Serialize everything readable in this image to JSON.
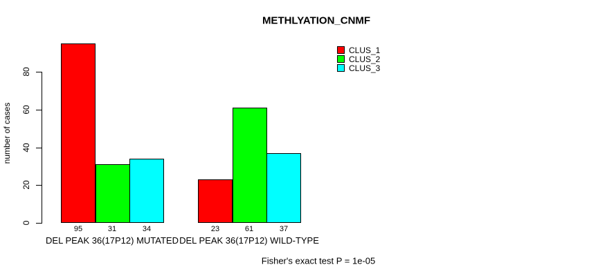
{
  "chart_data": {
    "type": "bar",
    "title": "METHLYATION_CNMF",
    "ylabel": "number of cases",
    "xlabel": "",
    "yticks": [
      0,
      20,
      40,
      60,
      80
    ],
    "ylim": [
      0,
      95
    ],
    "grid": false,
    "legend_position": "top-right",
    "bar_value_labels": true,
    "categories": [
      "DEL PEAK 36(17P12) MUTATED",
      "DEL PEAK 36(17P12) WILD-TYPE"
    ],
    "series": [
      {
        "name": "CLUS_1",
        "color": "#ff0000",
        "values": [
          95,
          23
        ]
      },
      {
        "name": "CLUS_2",
        "color": "#00ff00",
        "values": [
          31,
          61
        ]
      },
      {
        "name": "CLUS_3",
        "color": "#00ffff",
        "values": [
          34,
          37
        ]
      }
    ],
    "annotation": "Fisher's exact test P = 1e-05"
  },
  "colors": {
    "background": "#ffffff",
    "axis": "#000000",
    "text": "#000000",
    "bar_border": "#000000"
  }
}
